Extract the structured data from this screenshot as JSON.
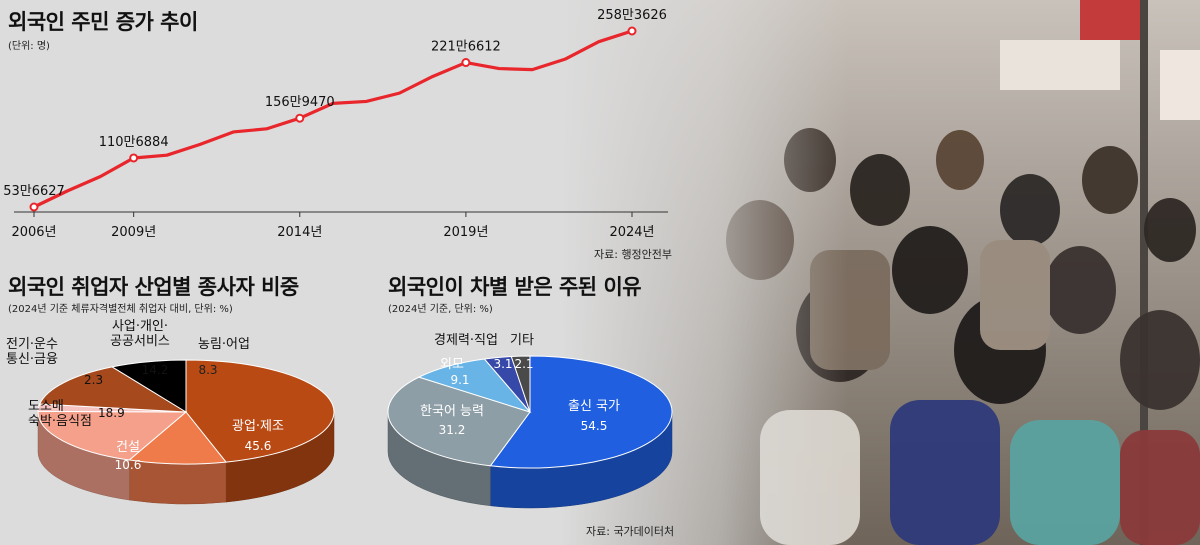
{
  "colors": {
    "line": "#e8262b",
    "pie1": [
      "#b94a14",
      "#ef7a4a",
      "#f4a08a",
      "#f6c4c0",
      "#a64a1e"
    ],
    "pie2": [
      "#1f5fe0",
      "#8e9ea6",
      "#69b4e6",
      "#3648a8",
      "#4a4a4a"
    ]
  },
  "chart_data": [
    {
      "type": "line",
      "title": "외국인 주민 증가 추이",
      "subtitle": "(단위: 명)",
      "source": "자료: 행정안전부",
      "x": [
        2006,
        2007,
        2008,
        2009,
        2010,
        2011,
        2012,
        2013,
        2014,
        2015,
        2016,
        2017,
        2018,
        2019,
        2020,
        2021,
        2022,
        2023,
        2024
      ],
      "values": [
        536627,
        722686,
        891341,
        1106884,
        1139283,
        1265006,
        1409577,
        1445631,
        1569470,
        1741919,
        1764664,
        1861084,
        2054621,
        2216612,
        2146748,
        2134569,
        2258248,
        2459542,
        2583626
      ],
      "xticks": [
        "2006년",
        "2009년",
        "2014년",
        "2019년",
        "2024년"
      ],
      "labels": [
        {
          "x": 2006,
          "text": "53만6627"
        },
        {
          "x": 2009,
          "text": "110만6884"
        },
        {
          "x": 2014,
          "text": "156만9470"
        },
        {
          "x": 2019,
          "text": "221만6612"
        },
        {
          "x": 2024,
          "text": "258만3626"
        }
      ]
    },
    {
      "type": "pie",
      "title": "외국인 취업자 산업별 종사자 비중",
      "subtitle": "(2024년 기준 체류자격별전체 취업자 대비, 단위: %)",
      "slices": [
        {
          "label": "광업·제조",
          "value": 45.6
        },
        {
          "label": "건설",
          "value": 10.6
        },
        {
          "label": "도소매 숙박·음식점",
          "value": 18.9
        },
        {
          "label": "전기·운수 통신·금융",
          "value": 2.3
        },
        {
          "label": "사업·개인· 공공서비스",
          "value": 14.2
        },
        {
          "label": "농림·어업",
          "value": 8.3
        }
      ]
    },
    {
      "type": "pie",
      "title": "외국인이 차별 받은 주된 이유",
      "subtitle": "(2024년 기준, 단위: %)",
      "source": "자료: 국가데이터처",
      "slices": [
        {
          "label": "출신 국가",
          "value": 54.5
        },
        {
          "label": "한국어 능력",
          "value": 31.2
        },
        {
          "label": "외모",
          "value": 9.1
        },
        {
          "label": "경제력·직업",
          "value": 3.1
        },
        {
          "label": "기타",
          "value": 2.1
        }
      ]
    }
  ]
}
